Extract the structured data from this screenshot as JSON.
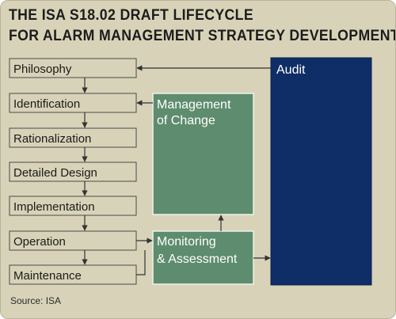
{
  "title": {
    "line1": "THE ISA S18.02 DRAFT LIFECYCLE",
    "line2": "FOR ALARM MANAGEMENT STRATEGY DEVELOPMENT"
  },
  "stages": [
    "Philosophy",
    "Identification",
    "Rationalization",
    "Detailed Design",
    "Implementation",
    "Operation",
    "Maintenance"
  ],
  "management_of_change": {
    "line1": "Management",
    "line2": "of Change"
  },
  "monitoring": {
    "line1": "Monitoring",
    "line2": "& Assessment"
  },
  "audit": "Audit",
  "source": "Source: ISA",
  "colors": {
    "background": "#d8d3b8",
    "stage_border": "#4a4a4a",
    "green_box": "#5e8c6e",
    "green_border": "#eef2ea",
    "audit_box": "#0f2d66",
    "arrow": "#333333"
  }
}
